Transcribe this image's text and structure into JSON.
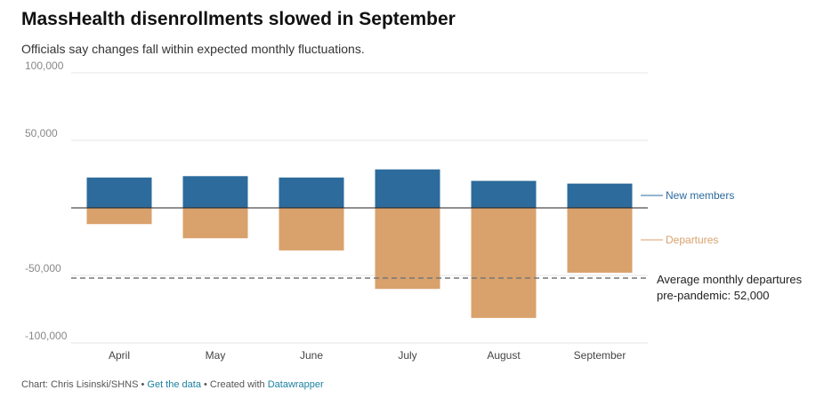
{
  "chart_data": {
    "type": "bar",
    "title": "MassHealth disenrollments slowed in September",
    "subtitle": "Officials say changes fall within expected monthly fluctuations.",
    "categories": [
      "April",
      "May",
      "June",
      "July",
      "August",
      "September"
    ],
    "series": [
      {
        "name": "New members",
        "color": "#2c6b9c",
        "values": [
          22500,
          23500,
          22500,
          28500,
          20000,
          18000
        ]
      },
      {
        "name": "Departures",
        "color": "#d9a16c",
        "values": [
          -12000,
          -22500,
          -31500,
          -60000,
          -81500,
          -48000
        ]
      }
    ],
    "ylim": [
      -100000,
      100000
    ],
    "yticks": [
      100000,
      50000,
      -50000,
      -100000
    ],
    "ytick_labels": [
      "100,000",
      "50,000",
      "-50,000",
      "-100,000"
    ],
    "reference_line": {
      "value": -52000,
      "label_line1": "Average monthly departures",
      "label_line2": "pre-pandemic: 52,000"
    },
    "grid": true,
    "legend": "right, direct labels"
  },
  "footer": {
    "credit": "Chart: Chris Lisinski/SHNS",
    "sep1": " • ",
    "get_data": "Get the data",
    "sep2": " • Created with ",
    "tool": "Datawrapper"
  }
}
